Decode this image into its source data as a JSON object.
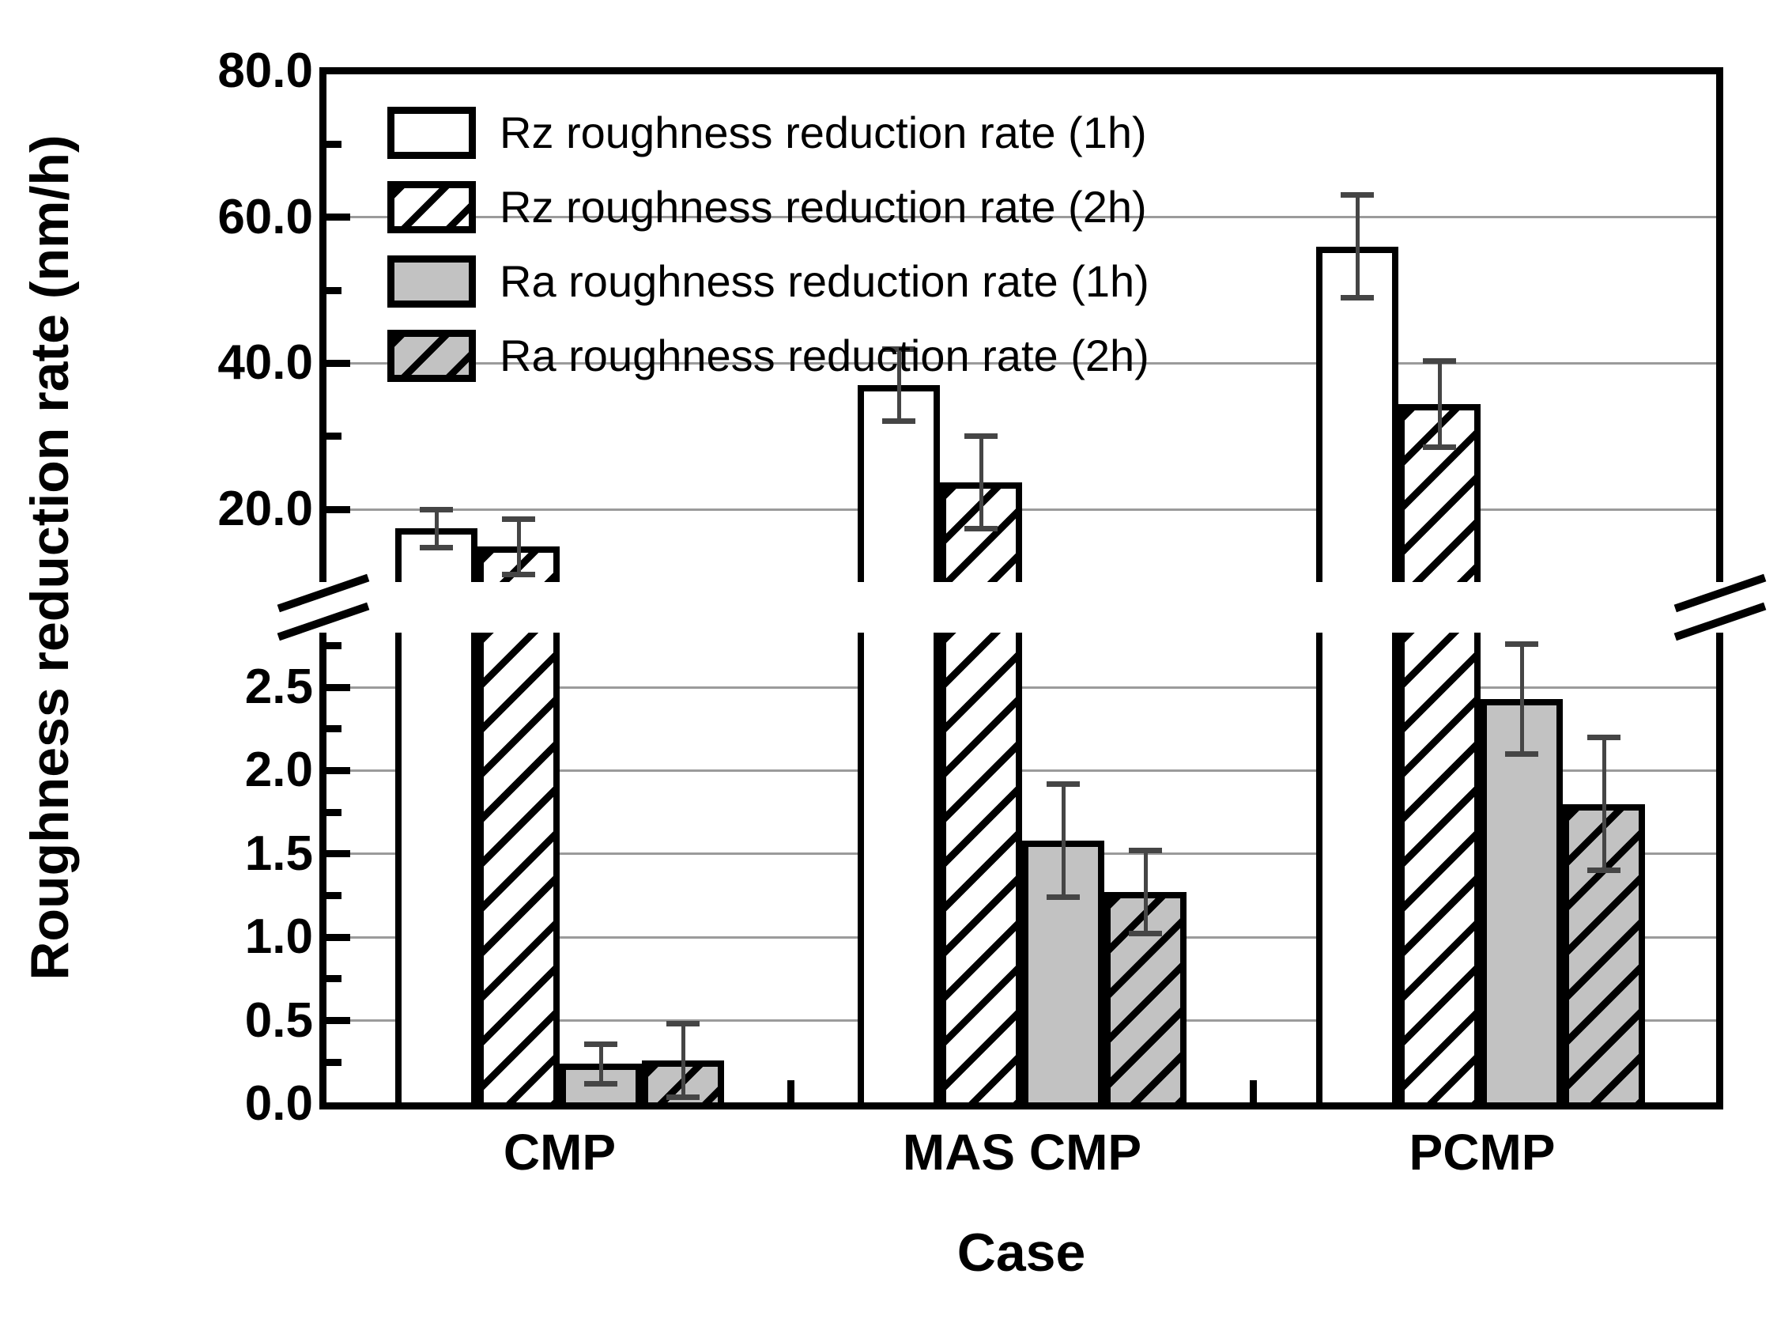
{
  "chart_data": {
    "type": "bar",
    "title": "",
    "xlabel": "Case",
    "ylabel": "Roughness reduction rate (nm/h)",
    "categories": [
      "CMP",
      "MAS CMP",
      "PCMP"
    ],
    "series": [
      {
        "name": "Rz roughness reduction rate (1h)",
        "fill": "white",
        "hatched": false,
        "axis_segment": "upper",
        "values": [
          17.4,
          37.0,
          56.0
        ],
        "errors": [
          2.6,
          4.9,
          7.0
        ]
      },
      {
        "name": "Rz roughness reduction rate (2h)",
        "fill": "white",
        "hatched": true,
        "axis_segment": "upper",
        "values": [
          14.9,
          23.7,
          34.4
        ],
        "errors": [
          3.8,
          6.3,
          5.9
        ]
      },
      {
        "name": "Ra roughness reduction rate (1h)",
        "fill": "gray",
        "hatched": false,
        "axis_segment": "lower",
        "values": [
          0.24,
          1.58,
          2.43
        ],
        "errors": [
          0.12,
          0.34,
          0.33
        ]
      },
      {
        "name": "Ra roughness reduction rate (2h)",
        "fill": "gray",
        "hatched": true,
        "axis_segment": "lower",
        "values": [
          0.26,
          1.27,
          1.8
        ],
        "errors": [
          0.22,
          0.25,
          0.4
        ]
      }
    ],
    "y_axis": {
      "unit": "nm/h",
      "broken": true,
      "upper_segment": {
        "tick_values": [
          80,
          60,
          40,
          20
        ],
        "tick_labels": [
          "80.0",
          "60.0",
          "40.0",
          "20.0"
        ],
        "minor_tick_values": [
          70,
          50,
          30
        ],
        "range": [
          20,
          80
        ]
      },
      "lower_segment": {
        "tick_values": [
          2.5,
          2.0,
          1.5,
          1.0,
          0.5,
          0.0
        ],
        "tick_labels": [
          "2.5",
          "2.0",
          "1.5",
          "1.0",
          "0.5",
          "0.0"
        ],
        "minor_tick_values": [
          2.75,
          2.25,
          1.75,
          1.25,
          0.75,
          0.25
        ],
        "range": [
          0,
          2.9
        ]
      }
    },
    "legend_position": "top-left-inside",
    "grid": true
  },
  "colors": {
    "background": "#ffffff",
    "bar_white": "#ffffff",
    "bar_gray": "#c2c2c2",
    "bar_border": "#000000",
    "gridline": "#9b9b9b",
    "error_bar": "#454545",
    "text": "#000000"
  }
}
